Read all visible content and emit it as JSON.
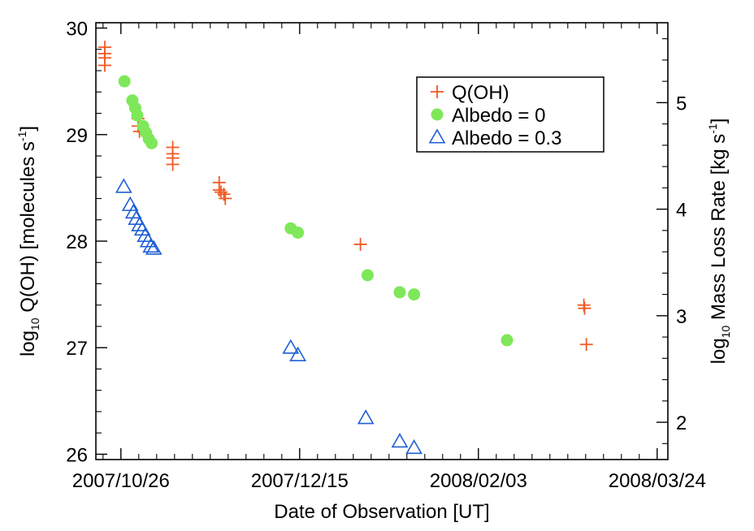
{
  "chart_data": {
    "type": "scatter",
    "title": "",
    "xlabel": "Date of Observation [UT]",
    "ylabel_left": {
      "prefix": "log",
      "sub": "10",
      "text": " Q(OH) [molecules s",
      "sup": "-1",
      "suffix": "]"
    },
    "ylabel_right": {
      "prefix": "log",
      "sub": "10",
      "text": " Mass Loss Rate [kg s",
      "sup": "-1",
      "suffix": "]"
    },
    "x_axis": {
      "unit": "days since 2007/10/26",
      "xlim": [
        -7,
        153
      ],
      "ticks": [
        {
          "value": 0,
          "label": "2007/10/26"
        },
        {
          "value": 50,
          "label": "2007/12/15"
        },
        {
          "value": 100,
          "label": "2008/02/03"
        },
        {
          "value": 150,
          "label": "2008/03/24"
        }
      ]
    },
    "y_left": {
      "ylim": [
        25.95,
        30.05
      ],
      "ticks": [
        {
          "value": 26,
          "label": "26"
        },
        {
          "value": 27,
          "label": "27"
        },
        {
          "value": 28,
          "label": "28"
        },
        {
          "value": 29,
          "label": "29"
        },
        {
          "value": 30,
          "label": "30"
        }
      ]
    },
    "y_right": {
      "ylim": [
        1.65,
        5.75
      ],
      "ticks": [
        {
          "value": 2,
          "label": "2"
        },
        {
          "value": 3,
          "label": "3"
        },
        {
          "value": 4,
          "label": "4"
        },
        {
          "value": 5,
          "label": "5"
        }
      ]
    },
    "legend": {
      "position": "top-right"
    },
    "series": [
      {
        "name": "Q(OH)",
        "marker": "plus",
        "color": "#f15a24",
        "axis": "left",
        "points": [
          {
            "x": -4.5,
            "y": 29.82
          },
          {
            "x": -4.5,
            "y": 29.76
          },
          {
            "x": -4.5,
            "y": 29.72
          },
          {
            "x": -4.5,
            "y": 29.65
          },
          {
            "x": 4.8,
            "y": 29.15
          },
          {
            "x": 4.8,
            "y": 29.08
          },
          {
            "x": 5.2,
            "y": 29.03
          },
          {
            "x": 14.5,
            "y": 28.88
          },
          {
            "x": 14.5,
            "y": 28.82
          },
          {
            "x": 14.5,
            "y": 28.78
          },
          {
            "x": 14.5,
            "y": 28.72
          },
          {
            "x": 27.5,
            "y": 28.55
          },
          {
            "x": 27.5,
            "y": 28.48
          },
          {
            "x": 28.0,
            "y": 28.46
          },
          {
            "x": 28.8,
            "y": 28.44
          },
          {
            "x": 29.2,
            "y": 28.4
          },
          {
            "x": 67.0,
            "y": 27.97
          },
          {
            "x": 129.5,
            "y": 27.4
          },
          {
            "x": 129.7,
            "y": 27.37
          },
          {
            "x": 130.2,
            "y": 27.03
          }
        ]
      },
      {
        "name": "Albedo = 0",
        "marker": "filled-circle",
        "color": "#7ee85a",
        "axis": "left",
        "points": [
          {
            "x": 1.0,
            "y": 29.5
          },
          {
            "x": 3.2,
            "y": 29.32
          },
          {
            "x": 4.0,
            "y": 29.25
          },
          {
            "x": 4.6,
            "y": 29.18
          },
          {
            "x": 6.2,
            "y": 29.08
          },
          {
            "x": 7.0,
            "y": 29.02
          },
          {
            "x": 7.8,
            "y": 28.96
          },
          {
            "x": 8.6,
            "y": 28.92
          },
          {
            "x": 47.5,
            "y": 28.12
          },
          {
            "x": 49.5,
            "y": 28.08
          },
          {
            "x": 69.0,
            "y": 27.68
          },
          {
            "x": 78.0,
            "y": 27.52
          },
          {
            "x": 82.0,
            "y": 27.5
          },
          {
            "x": 108.0,
            "y": 27.07
          }
        ]
      },
      {
        "name": "Albedo = 0.3",
        "marker": "open-triangle",
        "color": "#1f5fd6",
        "axis": "left",
        "points": [
          {
            "x": 0.8,
            "y": 28.51
          },
          {
            "x": 2.6,
            "y": 28.34
          },
          {
            "x": 3.5,
            "y": 28.27
          },
          {
            "x": 4.3,
            "y": 28.21
          },
          {
            "x": 5.2,
            "y": 28.15
          },
          {
            "x": 6.0,
            "y": 28.11
          },
          {
            "x": 6.8,
            "y": 28.05
          },
          {
            "x": 7.6,
            "y": 28.0
          },
          {
            "x": 8.4,
            "y": 27.95
          },
          {
            "x": 9.2,
            "y": 27.93
          },
          {
            "x": 47.5,
            "y": 27.0
          },
          {
            "x": 49.5,
            "y": 26.93
          },
          {
            "x": 68.5,
            "y": 26.34
          },
          {
            "x": 78.0,
            "y": 26.12
          },
          {
            "x": 82.0,
            "y": 26.06
          }
        ]
      }
    ]
  }
}
